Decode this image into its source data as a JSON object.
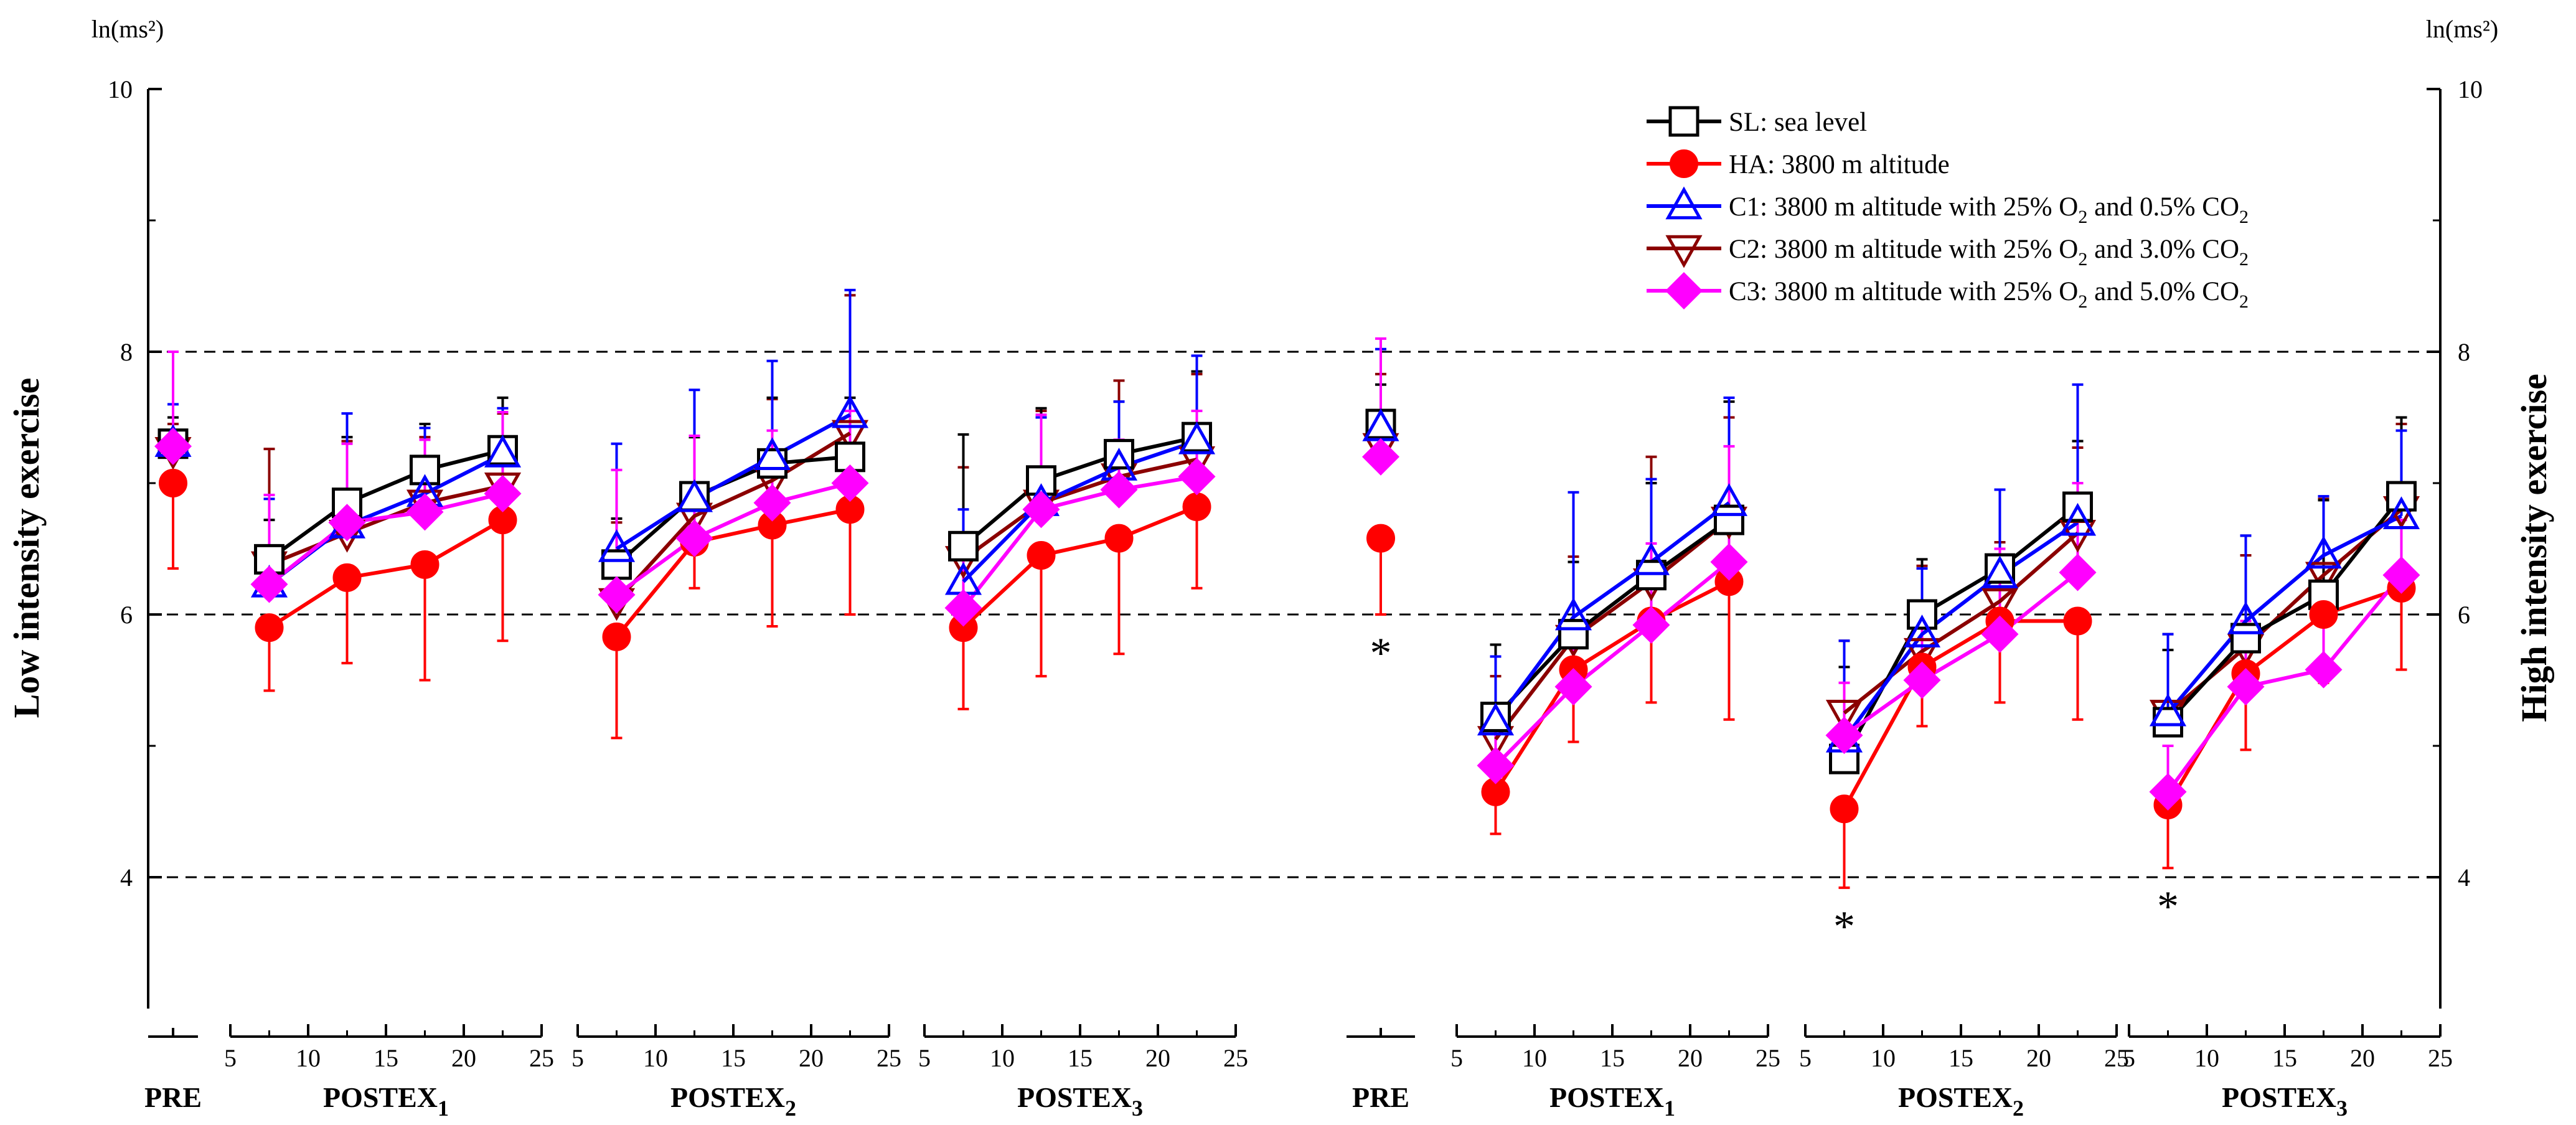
{
  "chart_data": {
    "type": "line",
    "y_unit_left": "ln(ms²)",
    "y_unit_right": "ln(ms²)",
    "ylabel_left": "Low intensity exercise",
    "ylabel_right": "High intensity exercise",
    "ylim": [
      3,
      10
    ],
    "yticks": [
      "4",
      "6",
      "8",
      "10"
    ],
    "gridlines_y": [
      4,
      6,
      8
    ],
    "xticks": [
      "5",
      "10",
      "15",
      "20",
      "25"
    ],
    "legend_position": "top-right",
    "panels": [
      {
        "name": "Low intensity exercise",
        "groups": [
          {
            "label": "PRE",
            "sub": ""
          },
          {
            "label": "POSTEX",
            "sub": "1"
          },
          {
            "label": "POSTEX",
            "sub": "2"
          },
          {
            "label": "POSTEX",
            "sub": "3"
          }
        ],
        "series": [
          {
            "name": "SL",
            "pre": [
              7.3,
              0.2
            ],
            "post": [
              [
                [
                  6.42,
                  0.3
                ],
                [
                  6.85,
                  0.5
                ],
                [
                  7.1,
                  0.35
                ],
                [
                  7.25,
                  0.4
                ]
              ],
              [
                [
                  6.38,
                  0.35
                ],
                [
                  6.9,
                  0.45
                ],
                [
                  7.15,
                  0.5
                ],
                [
                  7.2,
                  0.45
                ]
              ],
              [
                [
                  6.52,
                  0.85
                ],
                [
                  7.02,
                  0.55
                ],
                [
                  7.22,
                  0.4
                ],
                [
                  7.35,
                  0.5
                ]
              ]
            ]
          },
          {
            "name": "HA",
            "pre": [
              7.0,
              0.65
            ],
            "post": [
              [
                [
                  5.9,
                  0.48
                ],
                [
                  6.28,
                  0.65
                ],
                [
                  6.38,
                  0.88
                ],
                [
                  6.72,
                  0.92
                ]
              ],
              [
                [
                  5.83,
                  0.77
                ],
                [
                  6.55,
                  0.35
                ],
                [
                  6.68,
                  0.77
                ],
                [
                  6.8,
                  0.8
                ]
              ],
              [
                [
                  5.9,
                  0.62
                ],
                [
                  6.45,
                  0.92
                ],
                [
                  6.58,
                  0.88
                ],
                [
                  6.82,
                  0.62
                ]
              ]
            ]
          },
          {
            "name": "C1",
            "pre": [
              7.3,
              0.3
            ],
            "post": [
              [
                [
                  6.23,
                  0.65
                ],
                [
                  6.68,
                  0.85
                ],
                [
                  6.92,
                  0.5
                ],
                [
                  7.22,
                  0.35
                ]
              ],
              [
                [
                  6.5,
                  0.8
                ],
                [
                  6.88,
                  0.83
                ],
                [
                  7.2,
                  0.73
                ],
                [
                  7.52,
                  0.95
                ]
              ],
              [
                [
                  6.25,
                  0.55
                ],
                [
                  6.85,
                  0.65
                ],
                [
                  7.12,
                  0.5
                ],
                [
                  7.32,
                  0.65
                ]
              ]
            ]
          },
          {
            "name": "C2",
            "pre": [
              7.25,
              0.2
            ],
            "post": [
              [
                [
                  6.38,
                  0.88
                ],
                [
                  6.62,
                  0.7
                ],
                [
                  6.85,
                  0.5
                ],
                [
                  6.98,
                  0.55
                ]
              ],
              [
                [
                  6.1,
                  0.6
                ],
                [
                  6.75,
                  0.6
                ],
                [
                  7.02,
                  0.62
                ],
                [
                  7.38,
                  1.05
                ]
              ],
              [
                [
                  6.42,
                  0.7
                ],
                [
                  6.85,
                  0.7
                ],
                [
                  7.05,
                  0.73
                ],
                [
                  7.18,
                  0.65
                ]
              ]
            ]
          },
          {
            "name": "C3",
            "pre": [
              7.28,
              0.72
            ],
            "post": [
              [
                [
                  6.23,
                  0.68
                ],
                [
                  6.7,
                  0.6
                ],
                [
                  6.78,
                  0.55
                ],
                [
                  6.92,
                  0.62
                ]
              ],
              [
                [
                  6.15,
                  0.95
                ],
                [
                  6.58,
                  0.78
                ],
                [
                  6.85,
                  0.55
                ],
                [
                  7.0,
                  0.55
                ]
              ],
              [
                [
                  6.05,
                  0.55
                ],
                [
                  6.8,
                  0.72
                ],
                [
                  6.95,
                  0.38
                ],
                [
                  7.05,
                  0.5
                ]
              ]
            ]
          }
        ]
      },
      {
        "name": "High intensity exercise",
        "groups": [
          {
            "label": "PRE",
            "sub": ""
          },
          {
            "label": "POSTEX",
            "sub": "1"
          },
          {
            "label": "POSTEX",
            "sub": "2"
          },
          {
            "label": "POSTEX",
            "sub": "3"
          }
        ],
        "series": [
          {
            "name": "SL",
            "pre": [
              7.45,
              0.3
            ],
            "post": [
              [
                [
                  5.22,
                  0.55
                ],
                [
                  5.85,
                  0.55
                ],
                [
                  6.3,
                  0.7
                ],
                [
                  6.72,
                  0.9
                ]
              ],
              [
                [
                  4.9,
                  0.7
                ],
                [
                  6.0,
                  0.42
                ],
                [
                  6.35,
                  0.6
                ],
                [
                  6.82,
                  0.5
                ]
              ],
              [
                [
                  5.18,
                  0.55
                ],
                [
                  5.82,
                  0.78
                ],
                [
                  6.15,
                  0.72
                ],
                [
                  6.9,
                  0.6
                ]
              ]
            ]
          },
          {
            "name": "HA",
            "pre": [
              6.58,
              0.58
            ],
            "post": [
              [
                [
                  4.65,
                  0.32
                ],
                [
                  5.58,
                  0.55
                ],
                [
                  5.95,
                  0.62
                ],
                [
                  6.25,
                  1.05
                ]
              ],
              [
                [
                  4.52,
                  0.6
                ],
                [
                  5.6,
                  0.45
                ],
                [
                  5.95,
                  0.62
                ],
                [
                  5.95,
                  0.75
                ]
              ],
              [
                [
                  4.55,
                  0.48
                ],
                [
                  5.55,
                  0.58
                ],
                [
                  6.0,
                  0.52
                ],
                [
                  6.2,
                  0.62
                ]
              ]
            ]
          },
          {
            "name": "C1",
            "pre": [
              7.42,
              0.6
            ],
            "post": [
              [
                [
                  5.18,
                  0.5
                ],
                [
                  5.98,
                  0.95
                ],
                [
                  6.4,
                  0.63
                ],
                [
                  6.85,
                  0.8
                ]
              ],
              [
                [
                  5.05,
                  0.75
                ],
                [
                  5.85,
                  0.5
                ],
                [
                  6.3,
                  0.65
                ],
                [
                  6.7,
                  1.05
                ]
              ],
              [
                [
                  5.25,
                  0.6
                ],
                [
                  5.95,
                  0.65
                ],
                [
                  6.45,
                  0.45
                ],
                [
                  6.75,
                  0.65
                ]
              ]
            ]
          },
          {
            "name": "C2",
            "pre": [
              7.28,
              0.55
            ],
            "post": [
              [
                [
                  5.05,
                  0.48
                ],
                [
                  5.82,
                  0.62
                ],
                [
                  6.25,
                  0.95
                ],
                [
                  6.72,
                  0.78
                ]
              ],
              [
                [
                  5.25,
                  0.55
                ],
                [
                  5.72,
                  0.65
                ],
                [
                  6.1,
                  0.45
                ],
                [
                  6.62,
                  0.65
                ]
              ],
              [
                [
                  5.25,
                  0.6
                ],
                [
                  5.75,
                  0.7
                ],
                [
                  6.3,
                  0.58
                ],
                [
                  6.8,
                  0.65
                ]
              ]
            ]
          },
          {
            "name": "C3",
            "pre": [
              7.2,
              0.9
            ],
            "post": [
              [
                [
                  4.85,
                  0.32
                ],
                [
                  5.45,
                  0.45
                ],
                [
                  5.92,
                  0.62
                ],
                [
                  6.4,
                  0.88
                ]
              ],
              [
                [
                  5.08,
                  0.4
                ],
                [
                  5.5,
                  0.45
                ],
                [
                  5.85,
                  0.65
                ],
                [
                  6.32,
                  0.68
                ]
              ],
              [
                [
                  4.65,
                  0.35
                ],
                [
                  5.45,
                  0.5
                ],
                [
                  5.58,
                  0.52
                ],
                [
                  6.3,
                  0.42
                ]
              ]
            ]
          }
        ],
        "significance": [
          {
            "marker": "*",
            "group": "PRE",
            "point": 0
          },
          {
            "marker": "*",
            "group": "POSTEX2",
            "point": 0
          },
          {
            "marker": "*",
            "group": "POSTEX3",
            "point": 0
          }
        ]
      }
    ],
    "legend": [
      {
        "key": "SL",
        "label": "SL: sea level",
        "marker": "open-square",
        "color": "#000000"
      },
      {
        "key": "HA",
        "label": "HA: 3800 m altitude",
        "marker": "filled-circle",
        "color": "#ff0000"
      },
      {
        "key": "C1",
        "label": "C1: 3800 m altitude with 25% O",
        "o2sub": "2",
        "mid": " and 0.5% CO",
        "co2sub": "2",
        "marker": "open-triangle-up",
        "color": "#0000ff"
      },
      {
        "key": "C2",
        "label": "C2: 3800 m altitude with 25% O",
        "o2sub": "2",
        "mid": " and 3.0% CO",
        "co2sub": "2",
        "marker": "open-triangle-down",
        "color": "#8b0000"
      },
      {
        "key": "C3",
        "label": "C3: 3800 m altitude with 25% O",
        "o2sub": "2",
        "mid": " and 5.0% CO",
        "co2sub": "2",
        "marker": "filled-diamond",
        "color": "#ff00ff"
      }
    ]
  }
}
